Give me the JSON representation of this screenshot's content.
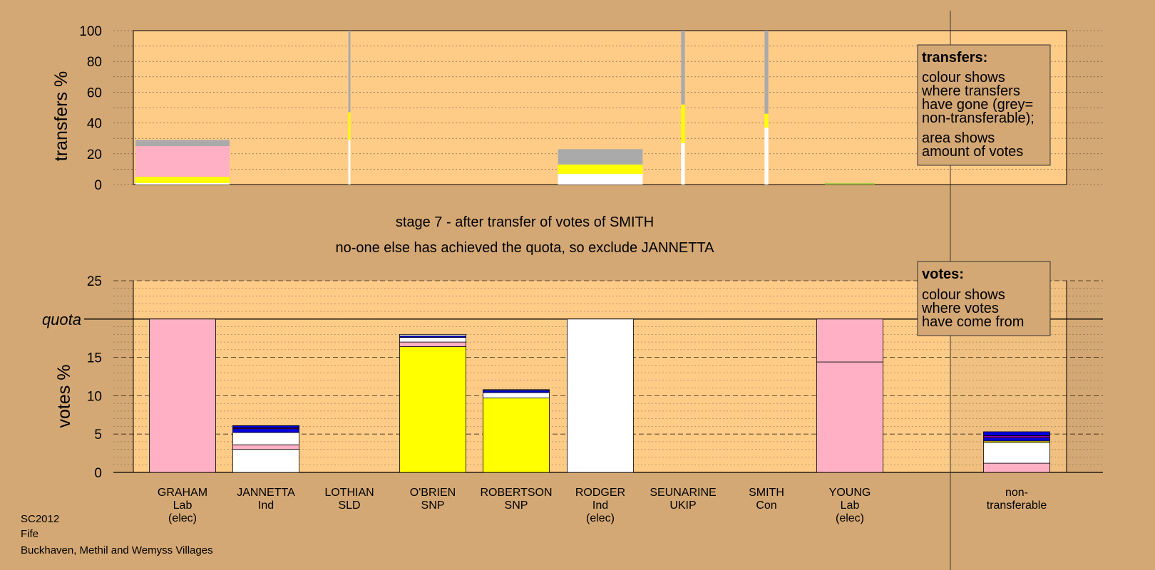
{
  "stage_title": "stage 7 - after transfer of votes of SMITH",
  "stage_note": "no-one else has achieved the quota, so exclude JANNETTA",
  "footer": [
    "SC2012",
    "Fife",
    "Buckhaven, Methil and Wemyss Villages"
  ],
  "legend_transfers": {
    "heading": "transfers:",
    "lines1": [
      "colour shows",
      "where transfers",
      "have gone (grey=",
      "non-transferable);"
    ],
    "lines2": [
      "area shows",
      "amount of votes"
    ]
  },
  "legend_votes": {
    "heading": "votes:",
    "lines": [
      "colour shows",
      "where votes",
      "have come from"
    ]
  },
  "colors": {
    "background": "#d4a874",
    "plot": "#ffcc88",
    "Lab": "#ffb0c4",
    "SNP": "#ffff00",
    "Ind": "#ffffff",
    "Con": "#0000dd",
    "SLD": "#ffaa00",
    "UKIP": "#8800aa",
    "nontransferable": "#aaaaaa"
  },
  "candidates": [
    {
      "name": "GRAHAM",
      "party": "Lab",
      "status": "(elec)"
    },
    {
      "name": "JANNETTA",
      "party": "Ind",
      "status": ""
    },
    {
      "name": "LOTHIAN",
      "party": "SLD",
      "status": ""
    },
    {
      "name": "O'BRIEN",
      "party": "SNP",
      "status": ""
    },
    {
      "name": "ROBERTSON",
      "party": "SNP",
      "status": ""
    },
    {
      "name": "RODGER",
      "party": "Ind",
      "status": "(elec)"
    },
    {
      "name": "SEUNARINE",
      "party": "UKIP",
      "status": ""
    },
    {
      "name": "SMITH",
      "party": "Con",
      "status": ""
    },
    {
      "name": "YOUNG",
      "party": "Lab",
      "status": "(elec)"
    },
    {
      "name": "non-",
      "party": "transferable",
      "status": ""
    }
  ],
  "chart_data": [
    {
      "type": "bar",
      "id": "transfers",
      "ylabel": "transfers %",
      "ylim": [
        0,
        100
      ],
      "yticks": [
        0,
        20,
        40,
        60,
        80,
        100
      ],
      "grid": "dotted",
      "bars": [
        {
          "candidate": "GRAHAM",
          "width": 1.0,
          "segments": [
            {
              "color": "Ind",
              "value": 1
            },
            {
              "color": "SNP",
              "value": 4
            },
            {
              "color": "Lab",
              "value": 20
            },
            {
              "color": "nontransferable",
              "value": 4
            }
          ]
        },
        {
          "candidate": "LOTHIAN",
          "width": 0.02,
          "segments": [
            {
              "color": "Ind",
              "value": 29
            },
            {
              "color": "SNP",
              "value": 18
            },
            {
              "color": "nontransferable",
              "value": 53
            }
          ]
        },
        {
          "candidate": "RODGER",
          "width": 0.9,
          "segments": [
            {
              "color": "Ind",
              "value": 6
            },
            {
              "color": "Ind",
              "value": 1
            },
            {
              "color": "SNP",
              "value": 6
            },
            {
              "color": "nontransferable",
              "value": 10
            }
          ]
        },
        {
          "candidate": "SEUNARINE",
          "width": 0.04,
          "segments": [
            {
              "color": "Ind",
              "value": 27
            },
            {
              "color": "SNP",
              "value": 25
            },
            {
              "color": "nontransferable",
              "value": 48
            }
          ]
        },
        {
          "candidate": "SMITH",
          "width": 0.04,
          "segments": [
            {
              "color": "Ind",
              "value": 37
            },
            {
              "color": "SNP",
              "value": 9
            },
            {
              "color": "nontransferable",
              "value": 54
            }
          ]
        }
      ]
    },
    {
      "type": "bar",
      "id": "votes",
      "ylabel": "votes %",
      "quota_label": "quota",
      "quota": 20,
      "ylim": [
        0,
        25
      ],
      "yticks": [
        0,
        5,
        10,
        15,
        20,
        25
      ],
      "grid": "dashed",
      "bars": [
        {
          "candidate": "GRAHAM",
          "segments": [
            {
              "color": "Lab",
              "value": 20
            }
          ]
        },
        {
          "candidate": "JANNETTA",
          "segments": [
            {
              "color": "Ind",
              "value": 3.0
            },
            {
              "color": "Lab",
              "value": 0.6
            },
            {
              "color": "Ind",
              "value": 1.6
            },
            {
              "color": "Con",
              "value": 0.5
            },
            {
              "color": "UKIP",
              "value": 0.1
            },
            {
              "color": "Con",
              "value": 0.3
            }
          ]
        },
        {
          "candidate": "O'BRIEN",
          "segments": [
            {
              "color": "SNP",
              "value": 16.4
            },
            {
              "color": "Lab",
              "value": 0.6
            },
            {
              "color": "Ind",
              "value": 0.6
            },
            {
              "color": "Con",
              "value": 0.2
            },
            {
              "color": "Ind",
              "value": 0.2
            }
          ]
        },
        {
          "candidate": "ROBERTSON",
          "segments": [
            {
              "color": "SNP",
              "value": 9.7
            },
            {
              "color": "Ind",
              "value": 0.7
            },
            {
              "color": "Con",
              "value": 0.3
            },
            {
              "color": "Ind",
              "value": 0.1
            }
          ]
        },
        {
          "candidate": "RODGER",
          "segments": [
            {
              "color": "Ind",
              "value": 20
            }
          ]
        },
        {
          "candidate": "YOUNG",
          "segments": [
            {
              "color": "Lab",
              "value": 14.4
            },
            {
              "color": "Lab",
              "value": 5.6
            }
          ]
        },
        {
          "candidate": "non-transferable",
          "segments": [
            {
              "color": "Lab",
              "value": 1.2
            },
            {
              "color": "Ind",
              "value": 2.7
            },
            {
              "color": "SNP",
              "value": 0.2
            },
            {
              "color": "Con",
              "value": 0.4
            },
            {
              "color": "UKIP",
              "value": 0.3
            },
            {
              "color": "Con",
              "value": 0.5
            }
          ]
        }
      ]
    }
  ]
}
